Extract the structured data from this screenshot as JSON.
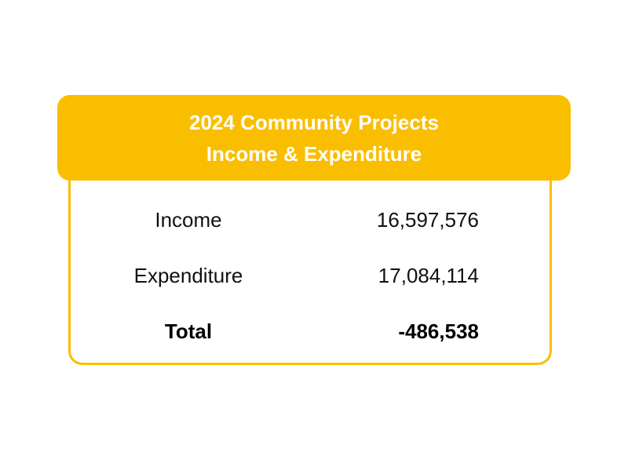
{
  "header": {
    "title_line1": "2024 Community Projects",
    "title_line2": "Income & Expenditure"
  },
  "rows": [
    {
      "label": "Income",
      "value": "16,597,576"
    },
    {
      "label": "Expenditure",
      "value": "17,084,114"
    },
    {
      "label": "Total",
      "value": "-486,538"
    }
  ],
  "colors": {
    "accent": "#FABE00",
    "header_text": "#FFFFFF",
    "body_text": "#111111"
  }
}
